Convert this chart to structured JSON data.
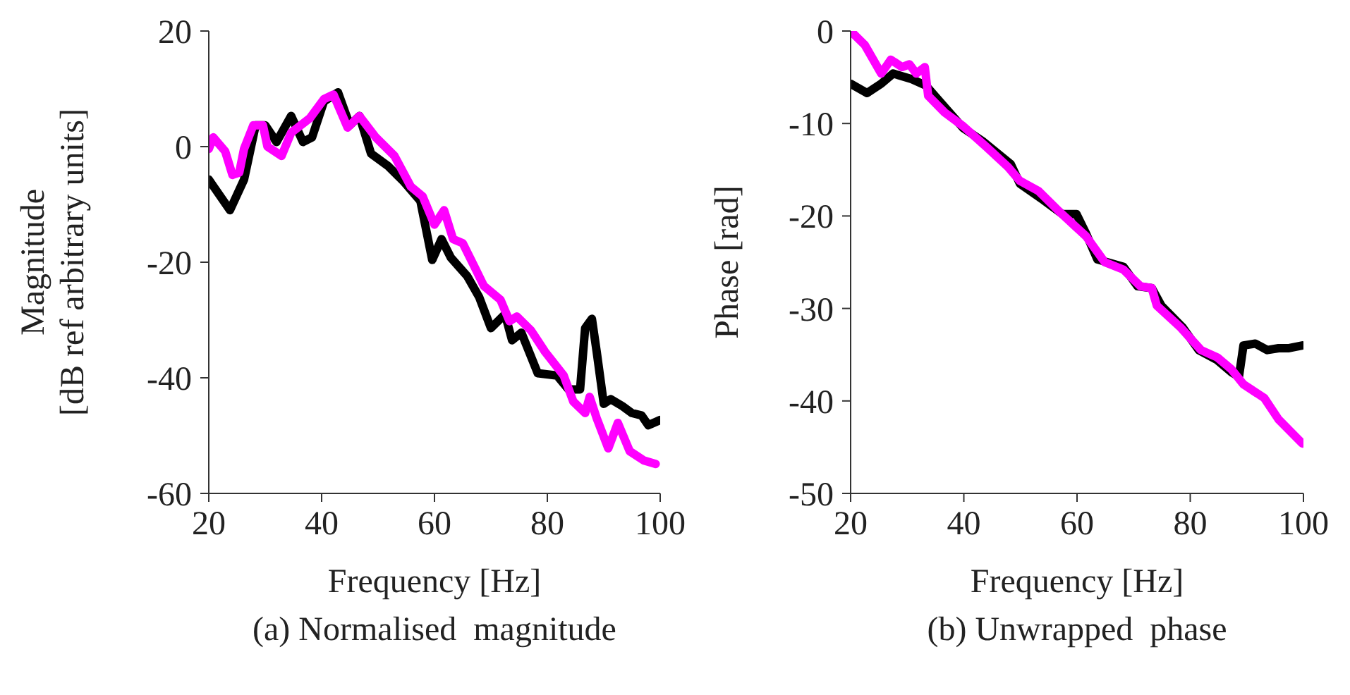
{
  "chart_data": [
    {
      "type": "line",
      "xlabel": "Frequency [Hz]",
      "ylabel": "Magnitude\n[dB ref arbitrary units]",
      "annotations": [
        "(a) Normalised  magnitude"
      ],
      "xlim": [
        20,
        100
      ],
      "xticks": [
        20,
        40,
        60,
        80,
        100
      ],
      "ylim": [
        -60,
        20
      ],
      "yticks": [
        -60,
        -40,
        -20,
        0,
        20
      ],
      "grid": false,
      "legend": false,
      "marker": "none",
      "line_style": "solid",
      "series": [
        {
          "color": "#000000",
          "x": [
            20,
            23.75,
            26.25,
            28.3,
            30,
            32,
            34.6,
            36.7,
            38.3,
            40.4,
            42.9,
            45,
            46.7,
            48.75,
            51.7,
            54.6,
            57.5,
            59.6,
            61.25,
            62.9,
            65.8,
            67.9,
            70,
            72.5,
            73.75,
            75.4,
            78.3,
            81.7,
            83.75,
            85.8,
            86.7,
            87.9,
            88.75,
            90,
            91.25,
            93.3,
            95,
            96.7,
            97.9,
            100
          ],
          "values": [
            -5.7,
            -11,
            -5.7,
            3.7,
            3.7,
            0.8,
            5.3,
            0.8,
            1.6,
            7.8,
            9.4,
            3.7,
            5.3,
            -1.2,
            -3.3,
            -6.1,
            -9.4,
            -19.6,
            -16,
            -19.2,
            -22.4,
            -26,
            -31.4,
            -29,
            -33.5,
            -32.2,
            -39.2,
            -39.6,
            -42,
            -42,
            -31.4,
            -29.8,
            -35.5,
            -44.5,
            -43.7,
            -44.9,
            -46.1,
            -46.5,
            -48.2,
            -47.3
          ]
        },
        {
          "color": "#ff00ff",
          "x": [
            20,
            20.8,
            22.9,
            24.2,
            25.4,
            26.25,
            27.9,
            29.6,
            30.4,
            32.9,
            34.6,
            37.9,
            40.4,
            42.1,
            44.6,
            46.7,
            49.6,
            52.9,
            55.8,
            57.9,
            60,
            61.7,
            63.3,
            65,
            67.1,
            68.75,
            71.7,
            73.3,
            74.6,
            77.1,
            79.6,
            82.9,
            84.6,
            86.7,
            87.5,
            88.75,
            90.8,
            92.5,
            94.6,
            97.1,
            99.2
          ],
          "values": [
            -0.4,
            1.6,
            -0.8,
            -4.9,
            -4.5,
            -0.4,
            3.7,
            3.7,
            0,
            -1.6,
            2.4,
            4.9,
            8.2,
            9,
            3.3,
            5.3,
            1.6,
            -1.6,
            -6.9,
            -8.6,
            -13.5,
            -11,
            -16,
            -16.7,
            -20.8,
            -24.1,
            -26.5,
            -30.2,
            -29.4,
            -31.8,
            -35.5,
            -39.6,
            -44.1,
            -46.1,
            -43.3,
            -47,
            -52.2,
            -47.8,
            -52.7,
            -54.3,
            -54.9
          ]
        }
      ]
    },
    {
      "type": "line",
      "xlabel": "Frequency [Hz]",
      "ylabel": "Phase [rad]",
      "annotations": [
        "(b) Unwrapped  phase"
      ],
      "xlim": [
        20,
        100
      ],
      "xticks": [
        20,
        40,
        60,
        80,
        100
      ],
      "ylim": [
        -50,
        0
      ],
      "yticks": [
        -50,
        -40,
        -30,
        -20,
        -10,
        0
      ],
      "grid": false,
      "legend": false,
      "marker": "none",
      "line_style": "solid",
      "series": [
        {
          "color": "#000000",
          "x": [
            20,
            22.9,
            25.4,
            27.5,
            30.8,
            33.3,
            36.6,
            39.9,
            43.3,
            48.3,
            49.9,
            54.1,
            57.4,
            59.9,
            61.6,
            63.6,
            68.2,
            70.7,
            73.2,
            74.9,
            78.6,
            81.5,
            84.8,
            87.3,
            88.6,
            89.4,
            91.5,
            93.6,
            95.6,
            97.3,
            99.8
          ],
          "values": [
            -5.7,
            -6.7,
            -5.7,
            -4.6,
            -5.2,
            -5.9,
            -8.2,
            -10.5,
            -11.9,
            -14.4,
            -16.5,
            -18.3,
            -19.8,
            -19.8,
            -21.9,
            -24.7,
            -25.5,
            -27.6,
            -27.8,
            -29.7,
            -32,
            -34.5,
            -35.6,
            -36.9,
            -37.4,
            -34,
            -33.8,
            -34.5,
            -34.3,
            -34.3,
            -34
          ]
        },
        {
          "color": "#ff00ff",
          "x": [
            20,
            22.5,
            25.4,
            27.1,
            29.1,
            30.4,
            31.6,
            33.1,
            33.7,
            36.6,
            39.9,
            44.1,
            47.8,
            49.9,
            53.2,
            57,
            61.6,
            64.9,
            68.2,
            71.2,
            73.2,
            74.1,
            78.2,
            81.9,
            84.8,
            87.3,
            89.4,
            93.1,
            95.6,
            99.8
          ],
          "values": [
            0,
            -1.5,
            -4.6,
            -3.1,
            -3.9,
            -3.6,
            -4.6,
            -3.9,
            -7,
            -8.8,
            -10.3,
            -12.6,
            -14.7,
            -16.2,
            -17.3,
            -19.6,
            -22.2,
            -25,
            -25.8,
            -27.6,
            -27.8,
            -29.7,
            -32,
            -34.5,
            -35.3,
            -36.6,
            -38.2,
            -39.7,
            -42,
            -44.6
          ]
        }
      ]
    }
  ]
}
